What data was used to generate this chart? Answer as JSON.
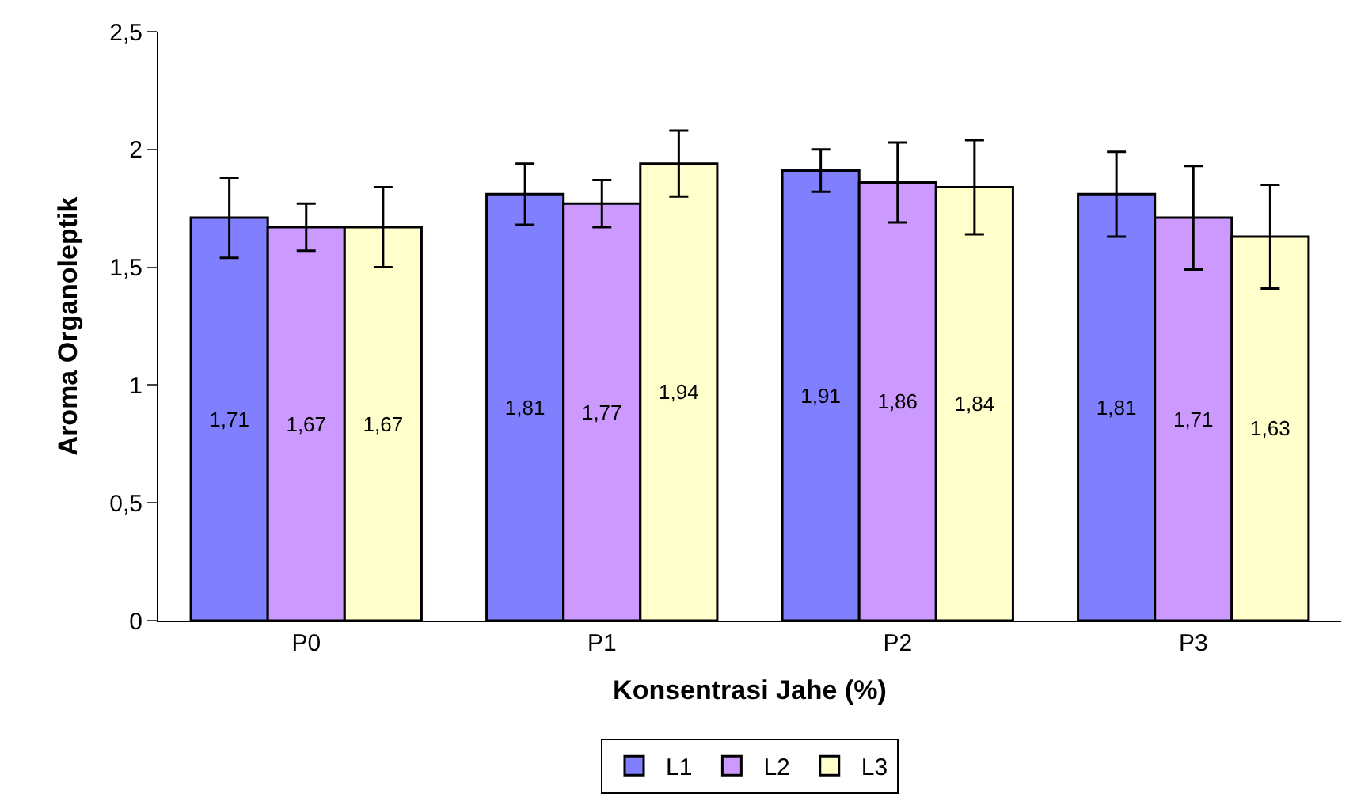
{
  "chart_data": {
    "type": "bar",
    "xlabel": "Konsentrasi Jahe (%)",
    "ylabel": "Aroma Organoleptik",
    "categories": [
      "P0",
      "P1",
      "P2",
      "P3"
    ],
    "series": [
      {
        "name": "L1",
        "color": "#8080ff",
        "values": [
          1.71,
          1.81,
          1.91,
          1.81
        ],
        "value_labels": [
          "1,71",
          "1,81",
          "1,91",
          "1,81"
        ],
        "errors": [
          0.17,
          0.13,
          0.09,
          0.18
        ]
      },
      {
        "name": "L2",
        "color": "#cc99ff",
        "values": [
          1.67,
          1.77,
          1.86,
          1.71
        ],
        "value_labels": [
          "1,67",
          "1,77",
          "1,86",
          "1,71"
        ],
        "errors": [
          0.1,
          0.1,
          0.17,
          0.22
        ]
      },
      {
        "name": "L3",
        "color": "#ffffcc",
        "values": [
          1.67,
          1.94,
          1.84,
          1.63
        ],
        "value_labels": [
          "1,67",
          "1,94",
          "1,84",
          "1,63"
        ],
        "errors": [
          0.17,
          0.14,
          0.2,
          0.22
        ]
      }
    ],
    "ylim": [
      0,
      2.5
    ],
    "yticks": [
      0,
      {
        "value": 0.5,
        "label": "0,5"
      },
      1,
      {
        "value": 1.5,
        "label": "1,5"
      },
      2,
      {
        "value": 2.5,
        "label": "2,5"
      }
    ],
    "grid": false,
    "legend": "bottom"
  }
}
